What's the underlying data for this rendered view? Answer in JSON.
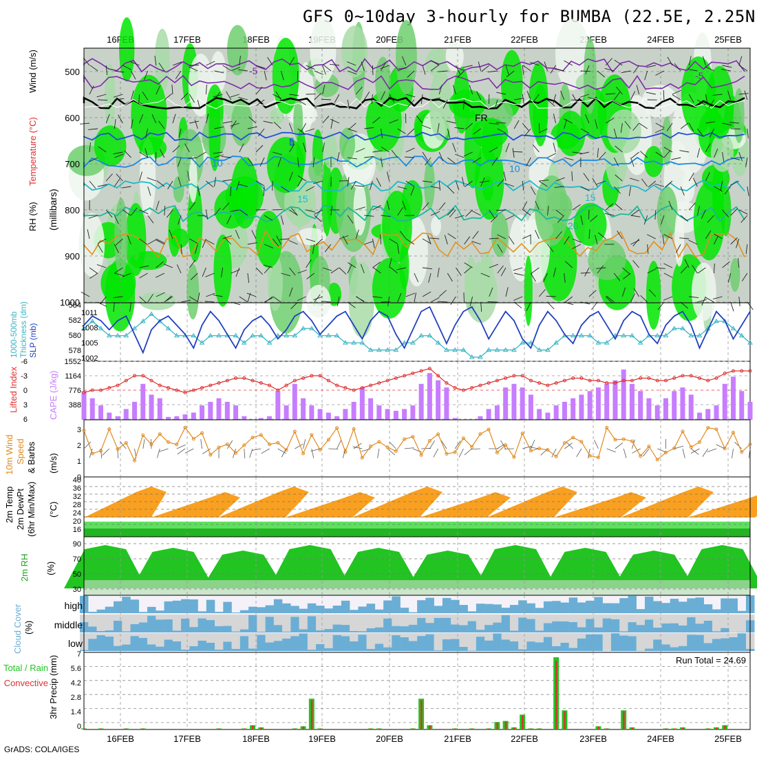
{
  "title": "GFS 0~10day 3-hourly for BUMBA (22.5E, 2.25N)",
  "credit": "GrADS: COLA/IGES",
  "colors": {
    "green": "#22c422",
    "rain": "#22c422",
    "convective": "#e03030",
    "cape": "#c77dff",
    "lifted": "#e03030",
    "slp": "#1f3fbf",
    "thickness": "#39b5c4",
    "wind": "#e08a1e",
    "cloud": "#6aaed6",
    "clear": "#f4f2f8",
    "gray": "#d6d6d6"
  },
  "date_labels": [
    "16FEB",
    "17FEB",
    "18FEB",
    "19FEB",
    "20FEB",
    "21FEB",
    "22FEB",
    "23FEB",
    "24FEB",
    "25FEB"
  ],
  "panels": {
    "upper": {
      "left_labels": [
        "RH (%)",
        "Temperature (°C)",
        "Wind (m/s)",
        "(millibars)"
      ],
      "y_ticks": [
        "500",
        "600",
        "700",
        "800",
        "900",
        "1000"
      ],
      "contour_labels": [
        "-5",
        "5",
        "10",
        "15",
        "20",
        "-5",
        "FR",
        "5",
        "10",
        "15",
        "20",
        "-5",
        "10",
        "15",
        "20"
      ]
    },
    "slp": {
      "left_label_a": "1000-500mb",
      "left_label_b": "Thickness (dm)",
      "left_label_c": "SLP (mb)",
      "left_ticks": [
        "584",
        "582",
        "580",
        "578"
      ],
      "right_ticks": [
        "1011",
        "1008",
        "1005",
        "1002"
      ]
    },
    "cape": {
      "left_label": "Lifted Index",
      "right_label": "CAPE (J/kg)",
      "left_ticks": [
        "-6",
        "-3",
        "0",
        "3",
        "6"
      ],
      "right_ticks": [
        "1552",
        "1164",
        "776",
        "388"
      ]
    },
    "wind10": {
      "label_a": "10m Wind",
      "label_b": "Speed",
      "label_c": "& Barbs",
      "unit": "(m/s)",
      "ticks": [
        "3",
        "2",
        "1",
        "0"
      ]
    },
    "temp": {
      "label_a": "2m Temp",
      "label_b": "2m DewPt",
      "label_c": "(6hr Min/Max)",
      "unit": "(°C)",
      "ticks": [
        "40",
        "36",
        "32",
        "28",
        "24",
        "20",
        "16"
      ]
    },
    "rh": {
      "label": "2m RH",
      "unit": "(%)",
      "ticks": [
        "90",
        "70",
        "50",
        "30"
      ]
    },
    "cloud": {
      "label": "Cloud Cover",
      "unit": "(%)",
      "levels": [
        "high",
        "middle",
        "low"
      ]
    },
    "precip": {
      "label_a": "Total / Rain",
      "label_b": "Convective",
      "ylabel": "3hr Precip (mm)",
      "ticks": [
        "7",
        "5.6",
        "4.2",
        "2.8",
        "1.4",
        "0"
      ],
      "run_total": "Run Total = 24.69"
    }
  },
  "chart_data": {
    "type": "multi-panel meteogram",
    "x": "3-hourly times, 15FEB to 25FEB",
    "slp_mb": [
      1008,
      1010,
      1009,
      1007,
      1009,
      1010,
      1006,
      1002,
      1007,
      1009,
      1010,
      1008,
      1006,
      1003,
      1008,
      1011,
      1009,
      1006,
      1003,
      1007,
      1009,
      1010,
      1008,
      1005,
      1007,
      1010,
      1011,
      1009,
      1006,
      1008,
      1010,
      1011,
      1008,
      1005,
      1009,
      1011,
      1010,
      1006,
      1003,
      1007,
      1011,
      1012,
      1008,
      1004,
      1008,
      1011,
      1012,
      1009,
      1005,
      1008,
      1011,
      1009,
      1005,
      1003,
      1008,
      1011,
      1009,
      1006,
      1004,
      1008,
      1010,
      1011,
      1008,
      1005,
      1009,
      1011,
      1010,
      1006,
      1004,
      1008,
      1010,
      1011,
      1008,
      1003,
      1007,
      1011,
      1009,
      1005,
      1008,
      1011
    ],
    "thickness_dm": [
      581,
      582,
      581,
      580,
      580,
      580,
      581,
      582,
      583,
      582,
      581,
      580,
      580,
      580,
      579,
      580,
      580,
      580,
      580,
      579,
      580,
      580,
      579,
      580,
      580,
      580,
      581,
      581,
      580,
      580,
      580,
      579,
      579,
      579,
      578,
      578,
      578,
      578,
      579,
      579,
      580,
      580,
      579,
      578,
      578,
      578,
      577,
      577,
      578,
      578,
      578,
      578,
      579,
      579,
      578,
      578,
      579,
      580,
      580,
      580,
      580,
      579,
      579,
      580,
      580,
      580,
      579,
      580,
      580,
      580,
      581,
      581,
      580,
      580,
      581,
      582,
      582,
      581,
      580,
      579
    ],
    "lifted_index": [
      0.5,
      0,
      0,
      -0.5,
      -1,
      -2,
      -3,
      -3,
      -2,
      -1,
      -0.5,
      0,
      0.5,
      0,
      -0.5,
      -1,
      -1.5,
      -2,
      -2.5,
      -2.5,
      -2,
      -1.5,
      -1,
      0,
      -1,
      -2,
      -2.5,
      -3,
      -3,
      -2,
      -1,
      -0.5,
      0,
      -0.5,
      -1,
      -1.5,
      -2,
      -2.5,
      -3,
      -3.5,
      -4,
      -4.5,
      -3,
      -1.5,
      -0.5,
      0,
      -0.5,
      -1,
      -1.5,
      -2,
      -2.5,
      -3,
      -3,
      -2,
      -1.5,
      -1,
      -1.5,
      -2,
      -2.5,
      -2.5,
      -2,
      -2,
      -1.5,
      -1.5,
      -2,
      -2,
      -2.5,
      -2.5,
      -2,
      -2,
      -2.5,
      -3,
      -3,
      -2.5,
      -2,
      -2.5,
      -3.5,
      -4,
      -4,
      -4
    ],
    "cape_jkg": [
      800,
      600,
      400,
      200,
      100,
      300,
      500,
      1000,
      700,
      600,
      80,
      100,
      150,
      200,
      400,
      500,
      600,
      500,
      400,
      100,
      0,
      50,
      100,
      800,
      400,
      1000,
      600,
      400,
      300,
      200,
      100,
      300,
      500,
      900,
      600,
      400,
      300,
      250,
      300,
      400,
      1000,
      1300,
      1100,
      900,
      50,
      0,
      0,
      100,
      300,
      400,
      900,
      1000,
      900,
      700,
      300,
      200,
      400,
      500,
      600,
      700,
      800,
      900,
      1000,
      1100,
      1400,
      1000,
      800,
      600,
      400,
      600,
      800,
      900,
      700,
      200,
      300,
      400,
      1000,
      1200,
      800,
      500
    ]
  }
}
